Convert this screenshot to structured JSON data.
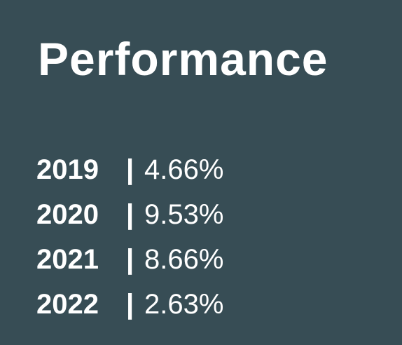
{
  "title": "Performance",
  "rows": [
    {
      "year": "2019",
      "separator": "|",
      "value": "4.66%"
    },
    {
      "year": "2020",
      "separator": "|",
      "value": "9.53%"
    },
    {
      "year": "2021",
      "separator": "|",
      "value": "8.66%"
    },
    {
      "year": "2022",
      "separator": "|",
      "value": "2.63%"
    }
  ]
}
